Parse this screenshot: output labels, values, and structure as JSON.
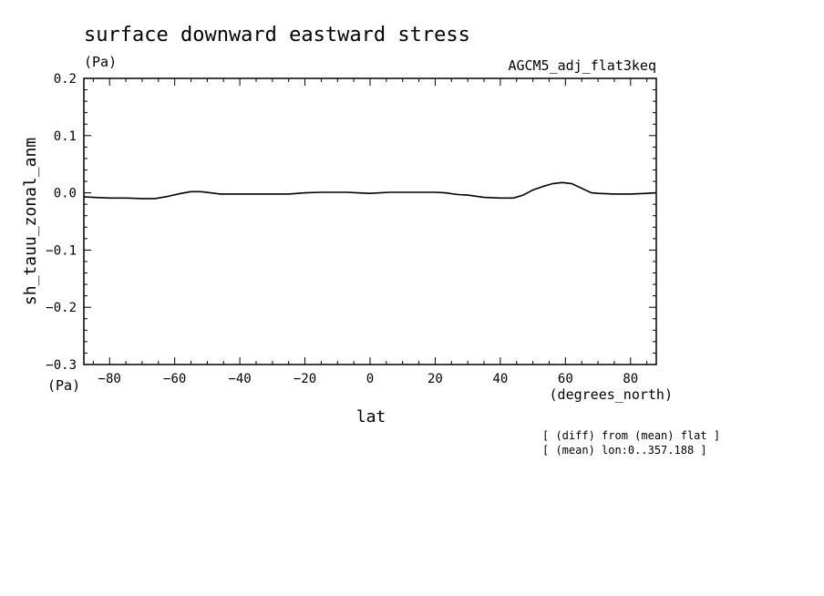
{
  "chart_data": {
    "type": "line",
    "title": "surface downward eastward stress",
    "units_top": "(Pa)",
    "units_left": "(Pa)",
    "dataset_label": "AGCM5_adj_flat3keq",
    "xlabel": "lat",
    "xunits": "(degrees_north)",
    "ylabel": "sh_tauu_zonal_anm",
    "xlim": [
      -87.9,
      87.9
    ],
    "ylim": [
      -0.3,
      0.2
    ],
    "xticks": [
      -80,
      -60,
      -40,
      -20,
      0,
      20,
      40,
      60,
      80
    ],
    "xtick_labels": [
      "−80",
      "−60",
      "−40",
      "−20",
      "0",
      "20",
      "40",
      "60",
      "80"
    ],
    "yticks": [
      0.2,
      0.1,
      0.0,
      -0.1,
      -0.2,
      -0.3
    ],
    "ytick_labels": [
      "0.2",
      "0.1",
      "0.0",
      "−0.1",
      "−0.2",
      "−0.3"
    ],
    "notes": [
      "[ (diff) from (mean) flat ]",
      "[ (mean) lon:0..357.188 ]"
    ],
    "series": [
      {
        "x": [
          -87.9,
          -85,
          -80,
          -75,
          -70,
          -66,
          -62,
          -58,
          -55,
          -52,
          -49,
          -46,
          -43,
          -40,
          -35,
          -30,
          -25,
          -20,
          -15,
          -10,
          -7,
          -4,
          0,
          3,
          6,
          10,
          15,
          20,
          23,
          27,
          30,
          35,
          40,
          44,
          47,
          50,
          53,
          56,
          59,
          62,
          65,
          68,
          70,
          75,
          80,
          85,
          87.9
        ],
        "y": [
          -0.007,
          -0.008,
          -0.009,
          -0.009,
          -0.01,
          -0.01,
          -0.006,
          -0.001,
          0.002,
          0.002,
          0.0,
          -0.002,
          -0.002,
          -0.002,
          -0.002,
          -0.002,
          -0.002,
          0.0,
          0.001,
          0.001,
          0.001,
          0.0,
          -0.001,
          0.0,
          0.001,
          0.001,
          0.001,
          0.001,
          0.0,
          -0.003,
          -0.004,
          -0.008,
          -0.009,
          -0.009,
          -0.004,
          0.005,
          0.011,
          0.016,
          0.018,
          0.016,
          0.008,
          0.0,
          -0.001,
          -0.002,
          -0.002,
          -0.001,
          0.0
        ]
      }
    ]
  }
}
